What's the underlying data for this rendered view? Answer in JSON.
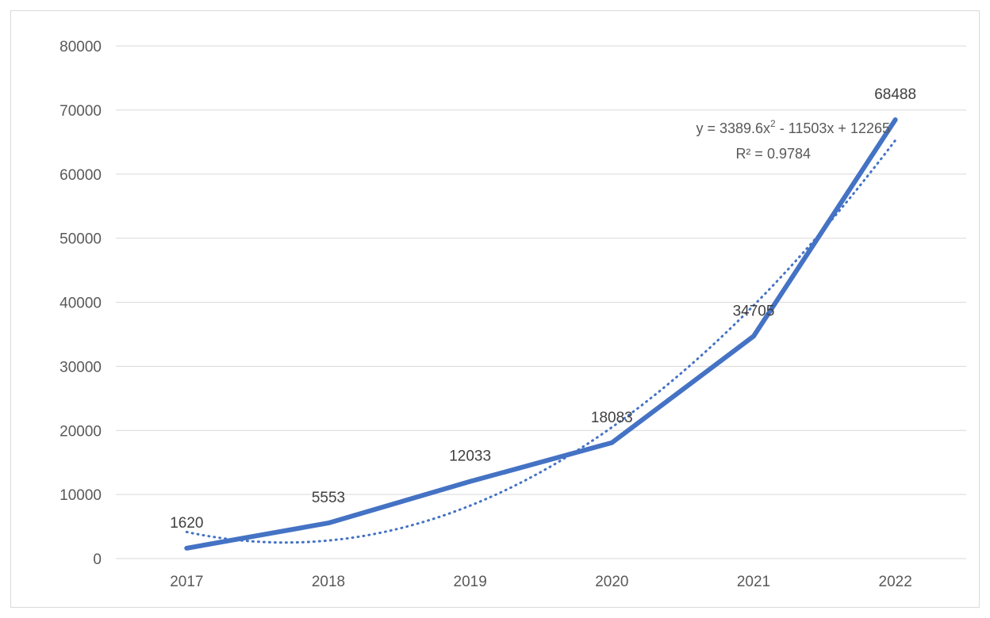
{
  "chart_data": {
    "type": "line",
    "title": "",
    "xlabel": "",
    "ylabel": "",
    "categories": [
      "2017",
      "2018",
      "2019",
      "2020",
      "2021",
      "2022"
    ],
    "series": [
      {
        "values": [
          1620,
          5553,
          12033,
          18083,
          34705,
          68488
        ],
        "color": "#4472c4",
        "data_labels": [
          "1620",
          "5553",
          "12033",
          "18083",
          "34705",
          "68488"
        ]
      }
    ],
    "trendline": {
      "type": "polynomial",
      "order": 2,
      "coefficients": [
        3389.6,
        -11503,
        12265
      ],
      "equation_prefix": "y = 3389.6x",
      "equation_exponent": "2",
      "equation_suffix": " - 11503x + 12265",
      "r_squared_text": "R² = 0.9784",
      "color": "#4472c4",
      "style": "dotted"
    },
    "y_ticks": [
      "0",
      "10000",
      "20000",
      "30000",
      "40000",
      "50000",
      "60000",
      "70000",
      "80000"
    ],
    "ylim": [
      0,
      80000
    ],
    "grid": true,
    "legend": "none",
    "colors": {
      "series": "#4472c4",
      "gridline": "#d9d9d9",
      "tick_text": "#595959",
      "data_label_text": "#404040"
    }
  }
}
